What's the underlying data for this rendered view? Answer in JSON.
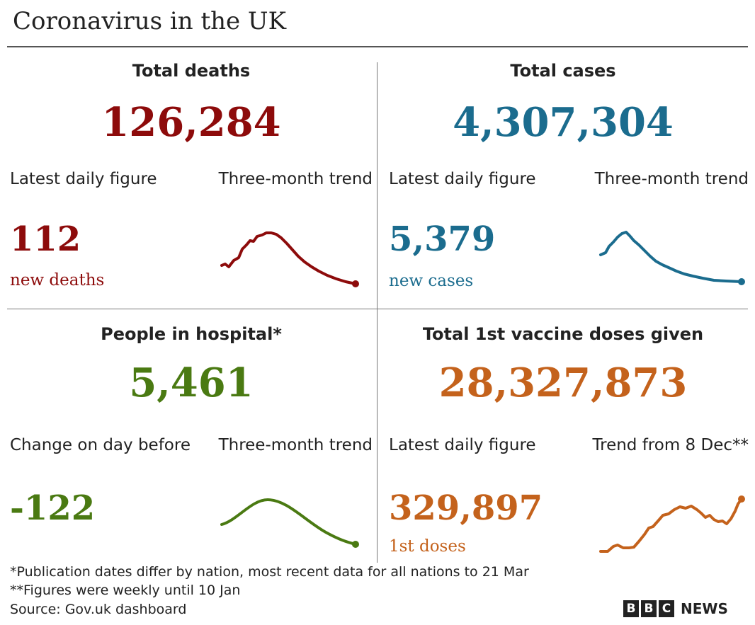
{
  "title": "Coronavirus in the UK",
  "panels": [
    {
      "heading": "Total deaths",
      "total": "126,284",
      "daily_label": "Latest daily figure",
      "trend_label": "Three-month trend",
      "daily_value": "112",
      "daily_unit": "new deaths"
    },
    {
      "heading": "Total cases",
      "total": "4,307,304",
      "daily_label": "Latest daily figure",
      "trend_label": "Three-month trend",
      "daily_value": "5,379",
      "daily_unit": "new cases"
    },
    {
      "heading": "People in hospital*",
      "total": "5,461",
      "daily_label": "Change on day before",
      "trend_label": "Three-month trend",
      "daily_value": "-122"
    },
    {
      "heading": "Total 1st vaccine doses given",
      "total": "28,327,873",
      "daily_label": "Latest daily figure",
      "trend_label": "Trend from 8 Dec**",
      "daily_value": "329,897",
      "daily_unit": "1st doses"
    }
  ],
  "footnotes": [
    "*Publication dates differ by nation, most recent data for all nations to 21 Mar",
    "**Figures were weekly until 10 Jan",
    "Source: Gov.uk dashboard"
  ],
  "logo": {
    "letters": [
      "B",
      "B",
      "C"
    ],
    "text": "NEWS"
  }
}
